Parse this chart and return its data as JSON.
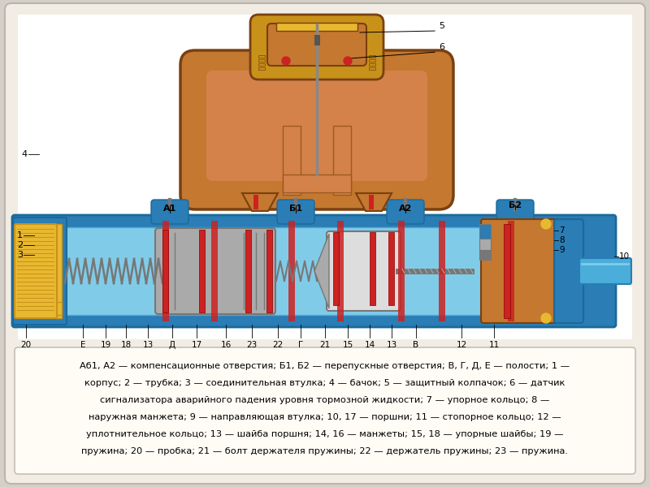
{
  "bg_color": "#d4cfc8",
  "panel_color": "#f2ede4",
  "panel_edge": "#bbb5aa",
  "figsize": [
    8.0,
    6.0
  ],
  "dpi": 100,
  "description_lines": [
    "Аб1, А2 — компенсационные отверстия; Б1, Б2 — перепускные отверстия; В, Г, Д, Е — полости; 1 —",
    "корпус; 2 — трубка; 3 — соединительная втулка; 4 — бачок; 5 — защитный колпачок; 6 — датчик",
    "сигнализатора аварийного падения уровня тормозной жидкости; 7 — упорное кольцо; 8 —",
    "наружная манжета; 9 — направляющая втулка; 10, 17 — поршни; 11 — стопорное кольцо; 12 —",
    "уплотнительное кольцо; 13 — шайба поршня; 14, 16 — манжеты; 15, 18 — упорные шайбы; 19 —",
    "пружина; 20 — пробка; 21 — болт держателя пружины; 22 — держатель пружины; 23 — пружина."
  ]
}
